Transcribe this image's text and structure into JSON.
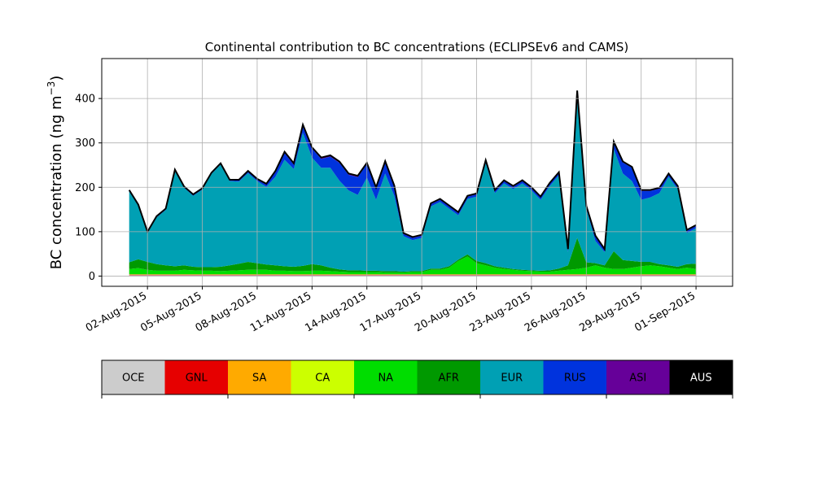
{
  "chart_data": {
    "type": "area",
    "stacked": true,
    "title": "Continental contribution to BC concentrations (ECLIPSEv6 and CAMS)",
    "ylabel": "BC concentration (ng m",
    "ylabel_sup": "−3",
    "ylabel_close": ")",
    "xlabel": "",
    "grid": true,
    "ylim": [
      -23,
      490
    ],
    "yticks": [
      0,
      100,
      200,
      300,
      400
    ],
    "ytick_labels": [
      "0",
      "100",
      "200",
      "300",
      "400"
    ],
    "xlim": [
      "2015-07-30T12:00",
      "2015-09-03T00:00"
    ],
    "xticks": [
      "2015-08-02",
      "2015-08-05",
      "2015-08-08",
      "2015-08-11",
      "2015-08-14",
      "2015-08-17",
      "2015-08-20",
      "2015-08-23",
      "2015-08-26",
      "2015-08-29",
      "2015-09-01"
    ],
    "xtick_labels": [
      "02-Aug-2015",
      "05-Aug-2015",
      "08-Aug-2015",
      "11-Aug-2015",
      "14-Aug-2015",
      "17-Aug-2015",
      "20-Aug-2015",
      "23-Aug-2015",
      "26-Aug-2015",
      "29-Aug-2015",
      "01-Sep-2015"
    ],
    "legend_position": "below-colorbar",
    "x": [
      "2015-08-01T00:00",
      "2015-08-01T12:00",
      "2015-08-02T00:00",
      "2015-08-02T12:00",
      "2015-08-03T00:00",
      "2015-08-03T12:00",
      "2015-08-04T00:00",
      "2015-08-04T12:00",
      "2015-08-05T00:00",
      "2015-08-05T12:00",
      "2015-08-06T00:00",
      "2015-08-06T12:00",
      "2015-08-07T00:00",
      "2015-08-07T12:00",
      "2015-08-08T00:00",
      "2015-08-08T12:00",
      "2015-08-09T00:00",
      "2015-08-09T12:00",
      "2015-08-10T00:00",
      "2015-08-10T12:00",
      "2015-08-11T00:00",
      "2015-08-11T12:00",
      "2015-08-12T00:00",
      "2015-08-12T12:00",
      "2015-08-13T00:00",
      "2015-08-13T12:00",
      "2015-08-14T00:00",
      "2015-08-14T12:00",
      "2015-08-15T00:00",
      "2015-08-15T12:00",
      "2015-08-16T00:00",
      "2015-08-16T12:00",
      "2015-08-17T00:00",
      "2015-08-17T12:00",
      "2015-08-18T00:00",
      "2015-08-18T12:00",
      "2015-08-19T00:00",
      "2015-08-19T12:00",
      "2015-08-20T00:00",
      "2015-08-20T12:00",
      "2015-08-21T00:00",
      "2015-08-21T12:00",
      "2015-08-22T00:00",
      "2015-08-22T12:00",
      "2015-08-23T00:00",
      "2015-08-23T12:00",
      "2015-08-24T00:00",
      "2015-08-24T12:00",
      "2015-08-25T00:00",
      "2015-08-25T12:00",
      "2015-08-26T00:00",
      "2015-08-26T12:00",
      "2015-08-27T00:00",
      "2015-08-27T12:00",
      "2015-08-28T00:00",
      "2015-08-28T12:00",
      "2015-08-29T00:00",
      "2015-08-29T12:00",
      "2015-08-30T00:00",
      "2015-08-30T12:00",
      "2015-08-31T00:00",
      "2015-08-31T12:00",
      "2015-09-01T00:00"
    ],
    "series": [
      {
        "name": "OCE",
        "color": "#cccccc",
        "values": [
          2,
          2,
          2,
          2,
          2,
          2,
          2,
          2,
          2,
          2,
          2,
          2,
          2,
          2,
          2,
          2,
          2,
          2,
          2,
          2,
          2,
          2,
          2,
          2,
          2,
          2,
          2,
          2,
          2,
          2,
          2,
          2,
          2,
          2,
          2,
          2,
          2,
          2,
          2,
          2,
          2,
          2,
          2,
          2,
          2,
          2,
          2,
          2,
          2,
          2,
          2,
          2,
          2,
          2,
          2,
          2,
          2,
          2,
          2,
          2,
          2,
          2,
          2
        ]
      },
      {
        "name": "GNL",
        "color": "#e60000",
        "values": [
          1,
          1,
          1,
          1,
          1,
          1,
          1,
          1,
          1,
          1,
          1,
          1,
          1,
          1,
          1,
          1,
          1,
          1,
          1,
          1,
          1,
          1,
          1,
          1,
          1,
          1,
          1,
          1,
          1,
          1,
          1,
          1,
          1,
          1,
          1,
          1,
          1,
          1,
          1,
          1,
          1,
          1,
          1,
          1,
          1,
          1,
          1,
          1,
          1,
          1,
          1,
          1,
          1,
          1,
          1,
          1,
          1,
          1,
          1,
          1,
          1,
          1,
          1
        ]
      },
      {
        "name": "SA",
        "color": "#ffaa00",
        "values": [
          1,
          1,
          1,
          1,
          1,
          1,
          1,
          1,
          1,
          1,
          1,
          1,
          1,
          1,
          1,
          1,
          1,
          1,
          1,
          1,
          1,
          1,
          1,
          1,
          1,
          1,
          1,
          1,
          1,
          1,
          1,
          1,
          1,
          1,
          1,
          1,
          1,
          1,
          1,
          1,
          1,
          1,
          1,
          1,
          1,
          1,
          1,
          1,
          1,
          1,
          1,
          1,
          1,
          1,
          1,
          1,
          1,
          1,
          1,
          1,
          1,
          1,
          1
        ]
      },
      {
        "name": "CA",
        "color": "#ccff00",
        "values": [
          0,
          0,
          0,
          0,
          0,
          0,
          0,
          0,
          0,
          0,
          0,
          0,
          0,
          0,
          0,
          0,
          0,
          0,
          0,
          0,
          0,
          0,
          0,
          0,
          0,
          0,
          0,
          0,
          0,
          0,
          0,
          0,
          0,
          0,
          0,
          0,
          0,
          0,
          0,
          0,
          0,
          0,
          0,
          0,
          0,
          0,
          0,
          0,
          0,
          0,
          0,
          0,
          0,
          0,
          0,
          0,
          0,
          0,
          0,
          0,
          0,
          0,
          0
        ]
      },
      {
        "name": "NA",
        "color": "#00dd00",
        "values": [
          12,
          14,
          10,
          8,
          8,
          8,
          10,
          9,
          8,
          8,
          7,
          8,
          9,
          10,
          10,
          10,
          8,
          8,
          7,
          7,
          8,
          8,
          7,
          6,
          5,
          5,
          5,
          5,
          4,
          4,
          4,
          5,
          5,
          10,
          10,
          15,
          30,
          40,
          25,
          20,
          15,
          12,
          10,
          8,
          7,
          6,
          6,
          8,
          10,
          12,
          15,
          20,
          15,
          12,
          12,
          15,
          18,
          20,
          18,
          15,
          12,
          15,
          12
        ]
      },
      {
        "name": "AFR",
        "color": "#009900",
        "values": [
          15,
          20,
          18,
          15,
          12,
          10,
          10,
          8,
          8,
          8,
          10,
          12,
          15,
          18,
          15,
          12,
          12,
          10,
          10,
          12,
          15,
          12,
          8,
          5,
          4,
          4,
          3,
          3,
          3,
          3,
          2,
          2,
          2,
          3,
          3,
          3,
          3,
          5,
          5,
          5,
          3,
          3,
          2,
          2,
          2,
          2,
          3,
          5,
          10,
          70,
          12,
          5,
          5,
          40,
          20,
          15,
          10,
          8,
          5,
          5,
          5,
          8,
          12
        ]
      },
      {
        "name": "EUR",
        "color": "#00a0b4",
        "values": [
          160,
          120,
          65,
          105,
          125,
          215,
          175,
          160,
          175,
          210,
          230,
          190,
          185,
          200,
          185,
          175,
          200,
          240,
          220,
          300,
          240,
          220,
          225,
          200,
          180,
          170,
          210,
          160,
          220,
          170,
          80,
          70,
          75,
          140,
          150,
          130,
          100,
          125,
          145,
          225,
          165,
          190,
          180,
          195,
          180,
          160,
          190,
          210,
          30,
          325,
          120,
          50,
          30,
          230,
          195,
          180,
          140,
          145,
          160,
          200,
          175,
          70,
          80
        ]
      },
      {
        "name": "RUS",
        "color": "#0033dd",
        "values": [
          2,
          2,
          2,
          2,
          2,
          2,
          2,
          2,
          2,
          2,
          2,
          2,
          3,
          3,
          3,
          5,
          10,
          15,
          10,
          15,
          20,
          20,
          25,
          40,
          35,
          40,
          30,
          25,
          25,
          20,
          5,
          5,
          5,
          5,
          5,
          5,
          5,
          5,
          5,
          5,
          5,
          5,
          5,
          5,
          5,
          5,
          5,
          5,
          5,
          5,
          5,
          10,
          5,
          15,
          25,
          30,
          20,
          15,
          10,
          5,
          5,
          5,
          5
        ]
      },
      {
        "name": "ASI",
        "color": "#660099",
        "values": [
          1,
          1,
          1,
          1,
          1,
          1,
          1,
          1,
          1,
          1,
          1,
          1,
          1,
          2,
          2,
          2,
          3,
          3,
          3,
          3,
          3,
          3,
          3,
          3,
          3,
          3,
          3,
          3,
          3,
          3,
          2,
          2,
          2,
          2,
          2,
          2,
          2,
          2,
          2,
          2,
          2,
          2,
          2,
          2,
          2,
          2,
          2,
          2,
          2,
          2,
          2,
          2,
          2,
          2,
          2,
          2,
          2,
          2,
          2,
          2,
          2,
          2,
          2
        ]
      },
      {
        "name": "AUS",
        "color": "#000000",
        "values": [
          0,
          0,
          0,
          0,
          0,
          0,
          0,
          0,
          0,
          0,
          0,
          0,
          0,
          0,
          0,
          0,
          0,
          0,
          0,
          0,
          0,
          0,
          0,
          0,
          0,
          0,
          0,
          0,
          0,
          0,
          0,
          0,
          0,
          0,
          0,
          0,
          0,
          0,
          0,
          0,
          0,
          0,
          0,
          0,
          0,
          0,
          0,
          0,
          0,
          0,
          0,
          0,
          0,
          0,
          0,
          0,
          0,
          0,
          0,
          0,
          0,
          0,
          0
        ]
      }
    ]
  }
}
